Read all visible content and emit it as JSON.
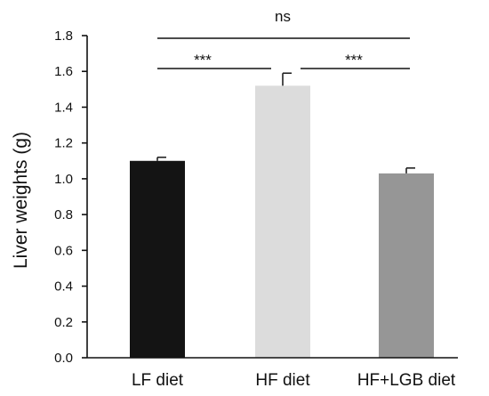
{
  "chart_data": {
    "type": "bar",
    "categories": [
      "LF diet",
      "HF diet",
      "HF+LGB diet"
    ],
    "values": [
      1.1,
      1.52,
      1.03
    ],
    "errors": [
      0.02,
      0.07,
      0.03
    ],
    "bar_colors": [
      "#141414",
      "#dcdcdc",
      "#969696"
    ],
    "ylabel": "Liver weights (g)",
    "ylim": [
      0,
      1.8
    ],
    "yticks": [
      "0.0",
      "0.2",
      "0.4",
      "0.6",
      "0.8",
      "1.0",
      "1.2",
      "1.4",
      "1.6",
      "1.8"
    ],
    "grid": false,
    "significance": [
      {
        "from": 0,
        "to": 1,
        "label": "***"
      },
      {
        "from": 1,
        "to": 2,
        "label": "***"
      },
      {
        "from": 0,
        "to": 2,
        "label": "ns"
      }
    ]
  }
}
